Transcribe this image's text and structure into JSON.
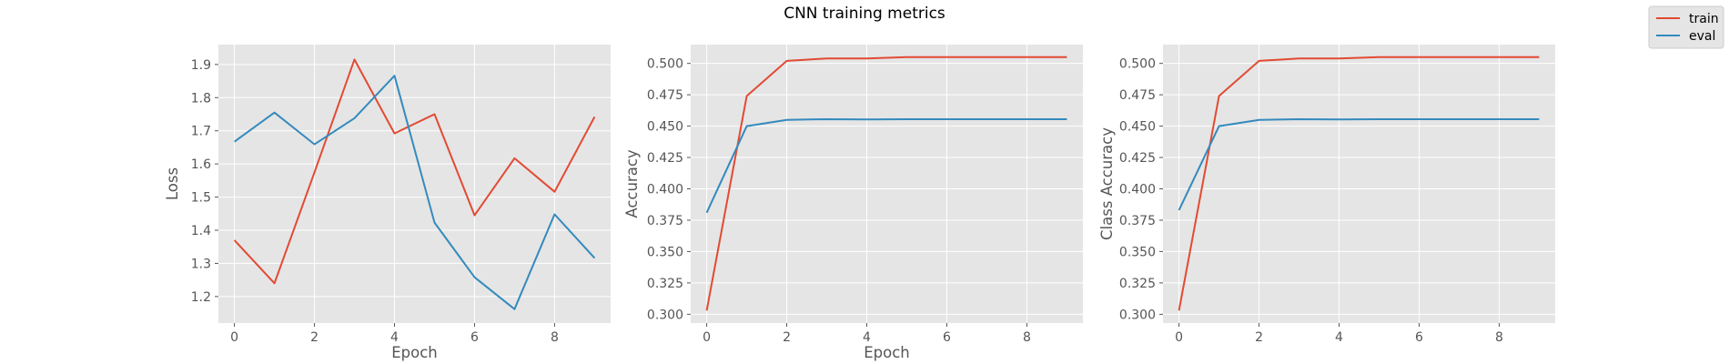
{
  "title": "CNN training metrics",
  "colors": {
    "train": "#E24A33",
    "eval": "#348ABD",
    "panel_bg": "#E5E5E5",
    "grid": "#FFFFFF"
  },
  "legend": {
    "placement": "top-right",
    "entries": [
      "train",
      "eval"
    ]
  },
  "chart_data": [
    {
      "type": "line",
      "xlabel": "Epoch",
      "ylabel": "Loss",
      "grid": true,
      "xlim": [
        -0.4,
        9.4
      ],
      "ylim": [
        1.12,
        1.96
      ],
      "xticks": [
        0,
        2,
        4,
        6,
        8
      ],
      "yticks": [
        1.2,
        1.3,
        1.4,
        1.5,
        1.6,
        1.7,
        1.8,
        1.9
      ],
      "tick_labels_x": [
        "0",
        "2",
        "4",
        "6",
        "8"
      ],
      "tick_labels_y": [
        "1.2",
        "1.3",
        "1.4",
        "1.5",
        "1.6",
        "1.7",
        "1.8",
        "1.9"
      ],
      "x": [
        0,
        1,
        2,
        3,
        4,
        5,
        6,
        7,
        8,
        9
      ],
      "series": [
        {
          "name": "train",
          "values": [
            1.37,
            1.24,
            1.575,
            1.915,
            1.692,
            1.75,
            1.445,
            1.617,
            1.516,
            1.742
          ]
        },
        {
          "name": "eval",
          "values": [
            1.667,
            1.755,
            1.659,
            1.738,
            1.866,
            1.423,
            1.258,
            1.162,
            1.448,
            1.316
          ]
        }
      ]
    },
    {
      "type": "line",
      "xlabel": "Epoch",
      "ylabel": "Accuracy",
      "grid": true,
      "xlim": [
        -0.4,
        9.4
      ],
      "ylim": [
        0.293,
        0.515
      ],
      "xticks": [
        0,
        2,
        4,
        6,
        8
      ],
      "yticks": [
        0.3,
        0.325,
        0.35,
        0.375,
        0.4,
        0.425,
        0.45,
        0.475,
        0.5
      ],
      "tick_labels_x": [
        "0",
        "2",
        "4",
        "6",
        "8"
      ],
      "tick_labels_y": [
        "0.300",
        "0.325",
        "0.350",
        "0.375",
        "0.400",
        "0.425",
        "0.450",
        "0.475",
        "0.500"
      ],
      "x": [
        0,
        1,
        2,
        3,
        4,
        5,
        6,
        7,
        8,
        9
      ],
      "series": [
        {
          "name": "train",
          "values": [
            0.303,
            0.474,
            0.502,
            0.504,
            0.504,
            0.505,
            0.505,
            0.505,
            0.505,
            0.505
          ]
        },
        {
          "name": "eval",
          "values": [
            0.381,
            0.45,
            0.455,
            0.4555,
            0.4553,
            0.4555,
            0.4555,
            0.4555,
            0.4555,
            0.4555
          ]
        }
      ]
    },
    {
      "type": "line",
      "xlabel": "",
      "ylabel": "Class Accuracy",
      "grid": true,
      "xlim": [
        -0.4,
        9.4
      ],
      "ylim": [
        0.293,
        0.515
      ],
      "xticks": [
        0,
        2,
        4,
        6,
        8
      ],
      "yticks": [
        0.3,
        0.325,
        0.35,
        0.375,
        0.4,
        0.425,
        0.45,
        0.475,
        0.5
      ],
      "tick_labels_x": [
        "0",
        "2",
        "4",
        "6",
        "8"
      ],
      "tick_labels_y": [
        "0.300",
        "0.325",
        "0.350",
        "0.375",
        "0.400",
        "0.425",
        "0.450",
        "0.475",
        "0.500"
      ],
      "x": [
        0,
        1,
        2,
        3,
        4,
        5,
        6,
        7,
        8,
        9
      ],
      "series": [
        {
          "name": "train",
          "values": [
            0.303,
            0.474,
            0.502,
            0.504,
            0.504,
            0.505,
            0.505,
            0.505,
            0.505,
            0.505
          ]
        },
        {
          "name": "eval",
          "values": [
            0.383,
            0.45,
            0.455,
            0.4555,
            0.4553,
            0.4555,
            0.4555,
            0.4555,
            0.4555,
            0.4555
          ]
        }
      ]
    }
  ]
}
